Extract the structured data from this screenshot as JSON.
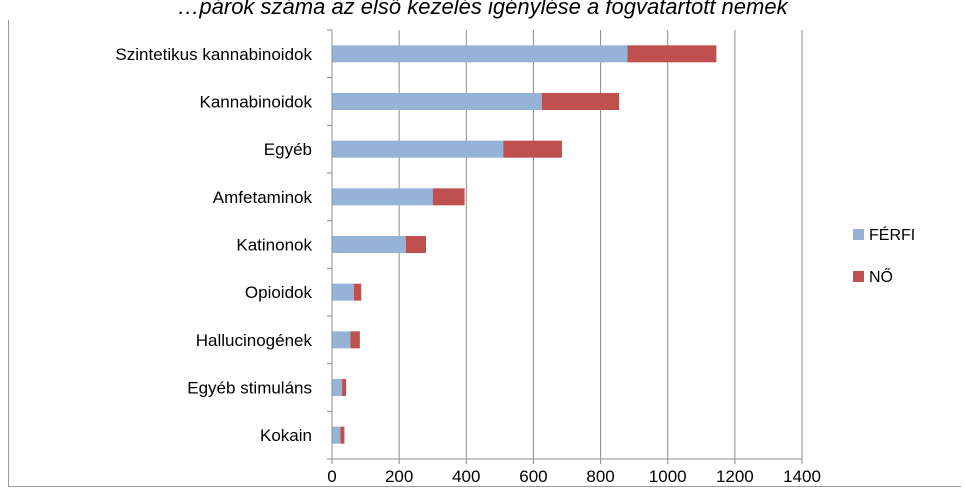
{
  "chart_data": {
    "type": "bar",
    "orientation": "horizontal",
    "stacked": true,
    "title": "…párok száma az első kezelés igénylése a fogvatartott nemek",
    "categories": [
      "Szintetikus kannabinoidok",
      "Kannabinoidok",
      "Egyéb",
      "Amfetaminok",
      "Katinonok",
      "Opioidok",
      "Hallucinogének",
      "Egyéb stimuláns",
      "Kokain"
    ],
    "series": [
      {
        "name": "FÉRFI",
        "color": "#95b3d7",
        "values": [
          880,
          625,
          510,
          300,
          220,
          65,
          55,
          30,
          25
        ]
      },
      {
        "name": "NŐ",
        "color": "#c0504d",
        "values": [
          265,
          230,
          175,
          95,
          60,
          22,
          28,
          12,
          12
        ]
      }
    ],
    "xlim": [
      0,
      1400
    ],
    "xticks": [
      0,
      200,
      400,
      600,
      800,
      1000,
      1200,
      1400
    ],
    "xtick_labels": [
      "0",
      "200",
      "400",
      "600",
      "800",
      "1000",
      "1200",
      "1400"
    ],
    "grid": "vertical",
    "legend_position": "right"
  }
}
